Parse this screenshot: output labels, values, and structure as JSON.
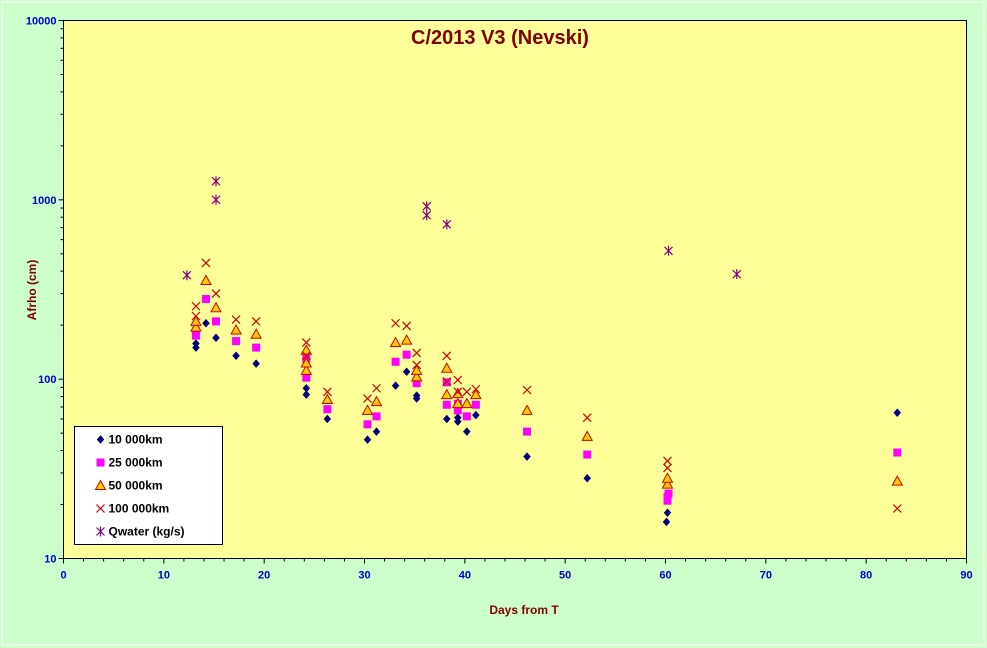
{
  "chart_data": {
    "type": "scatter",
    "title": "C/2013 V3 (Nevski)",
    "xlabel": "Days from  T",
    "ylabel": "Afrho (cm)",
    "xlim": [
      0,
      90
    ],
    "ylim": [
      10,
      10000
    ],
    "yscale": "log",
    "x_ticks": [
      "0",
      "10",
      "20",
      "30",
      "40",
      "50",
      "60",
      "70",
      "80",
      "90"
    ],
    "y_ticks": [
      "10",
      "100",
      "1000",
      "10000"
    ],
    "grid": false,
    "legend_position": "bottom-left",
    "colors": {
      "page_background": "#ccffcc",
      "plot_background": "#ffff99",
      "title": "#800000",
      "tick_labels": "#0000cc"
    },
    "series": [
      {
        "name": "10 000km",
        "marker": "diamond",
        "color": "#000080",
        "points": [
          [
            13.2,
            150
          ],
          [
            13.2,
            158
          ],
          [
            14.2,
            205
          ],
          [
            15.2,
            170
          ],
          [
            17.2,
            135
          ],
          [
            19.2,
            122
          ],
          [
            24.2,
            82
          ],
          [
            24.2,
            89
          ],
          [
            26.3,
            60
          ],
          [
            30.3,
            46
          ],
          [
            31.2,
            51
          ],
          [
            33.1,
            92
          ],
          [
            34.2,
            110
          ],
          [
            35.2,
            78
          ],
          [
            35.2,
            81
          ],
          [
            38.2,
            60
          ],
          [
            39.3,
            58
          ],
          [
            39.3,
            61
          ],
          [
            40.2,
            51
          ],
          [
            41.1,
            63
          ],
          [
            46.2,
            37
          ],
          [
            52.2,
            28
          ],
          [
            60.1,
            16
          ],
          [
            60.2,
            18
          ],
          [
            83.1,
            65
          ]
        ]
      },
      {
        "name": "25 000km",
        "marker": "square",
        "color": "#ff00ff",
        "points": [
          [
            13.2,
            175
          ],
          [
            13.2,
            185
          ],
          [
            14.2,
            280
          ],
          [
            15.2,
            210
          ],
          [
            17.2,
            163
          ],
          [
            19.2,
            150
          ],
          [
            24.2,
            102
          ],
          [
            24.2,
            130
          ],
          [
            26.3,
            68
          ],
          [
            30.3,
            56
          ],
          [
            31.2,
            62
          ],
          [
            33.1,
            125
          ],
          [
            34.2,
            137
          ],
          [
            35.2,
            95
          ],
          [
            38.2,
            72
          ],
          [
            38.2,
            96
          ],
          [
            39.3,
            67
          ],
          [
            39.3,
            73
          ],
          [
            40.2,
            62
          ],
          [
            41.1,
            72
          ],
          [
            46.2,
            51
          ],
          [
            52.2,
            38
          ],
          [
            60.2,
            21
          ],
          [
            60.2,
            22
          ],
          [
            60.3,
            23
          ],
          [
            83.1,
            39
          ]
        ]
      },
      {
        "name": "50 000km",
        "marker": "triangle",
        "color": "#cc0000",
        "fill": "#ffcc00",
        "points": [
          [
            13.2,
            195
          ],
          [
            13.2,
            210
          ],
          [
            14.2,
            355
          ],
          [
            15.2,
            250
          ],
          [
            17.2,
            188
          ],
          [
            19.2,
            178
          ],
          [
            24.2,
            112
          ],
          [
            24.2,
            123
          ],
          [
            24.2,
            145
          ],
          [
            26.3,
            77
          ],
          [
            30.3,
            67
          ],
          [
            31.2,
            75
          ],
          [
            33.1,
            160
          ],
          [
            34.2,
            165
          ],
          [
            35.2,
            103
          ],
          [
            35.2,
            112
          ],
          [
            38.2,
            82
          ],
          [
            38.2,
            115
          ],
          [
            39.3,
            73
          ],
          [
            39.3,
            83
          ],
          [
            40.2,
            73
          ],
          [
            41.1,
            82
          ],
          [
            46.2,
            67
          ],
          [
            52.2,
            48
          ],
          [
            60.2,
            26
          ],
          [
            60.2,
            28
          ],
          [
            83.1,
            27
          ]
        ]
      },
      {
        "name": "100 000km",
        "marker": "x",
        "color": "#cc0000",
        "points": [
          [
            13.2,
            225
          ],
          [
            13.2,
            255
          ],
          [
            14.2,
            445
          ],
          [
            15.2,
            300
          ],
          [
            17.2,
            215
          ],
          [
            19.2,
            210
          ],
          [
            24.2,
            135
          ],
          [
            24.2,
            160
          ],
          [
            26.3,
            85
          ],
          [
            30.3,
            78
          ],
          [
            31.2,
            89
          ],
          [
            33.1,
            205
          ],
          [
            34.2,
            198
          ],
          [
            35.2,
            120
          ],
          [
            35.2,
            140
          ],
          [
            38.2,
            97
          ],
          [
            38.2,
            135
          ],
          [
            39.3,
            85
          ],
          [
            39.3,
            99
          ],
          [
            40.2,
            85
          ],
          [
            41.1,
            88
          ],
          [
            46.2,
            87
          ],
          [
            52.2,
            61
          ],
          [
            60.2,
            32
          ],
          [
            60.2,
            35
          ],
          [
            83.1,
            19
          ]
        ]
      },
      {
        "name": "Qwater (kg/s)",
        "marker": "star",
        "color": "#800080",
        "points": [
          [
            12.3,
            380
          ],
          [
            15.2,
            1000
          ],
          [
            15.2,
            1270
          ],
          [
            36.2,
            820
          ],
          [
            36.2,
            920
          ],
          [
            38.2,
            730
          ],
          [
            60.3,
            520
          ],
          [
            67.1,
            385
          ]
        ]
      }
    ]
  }
}
